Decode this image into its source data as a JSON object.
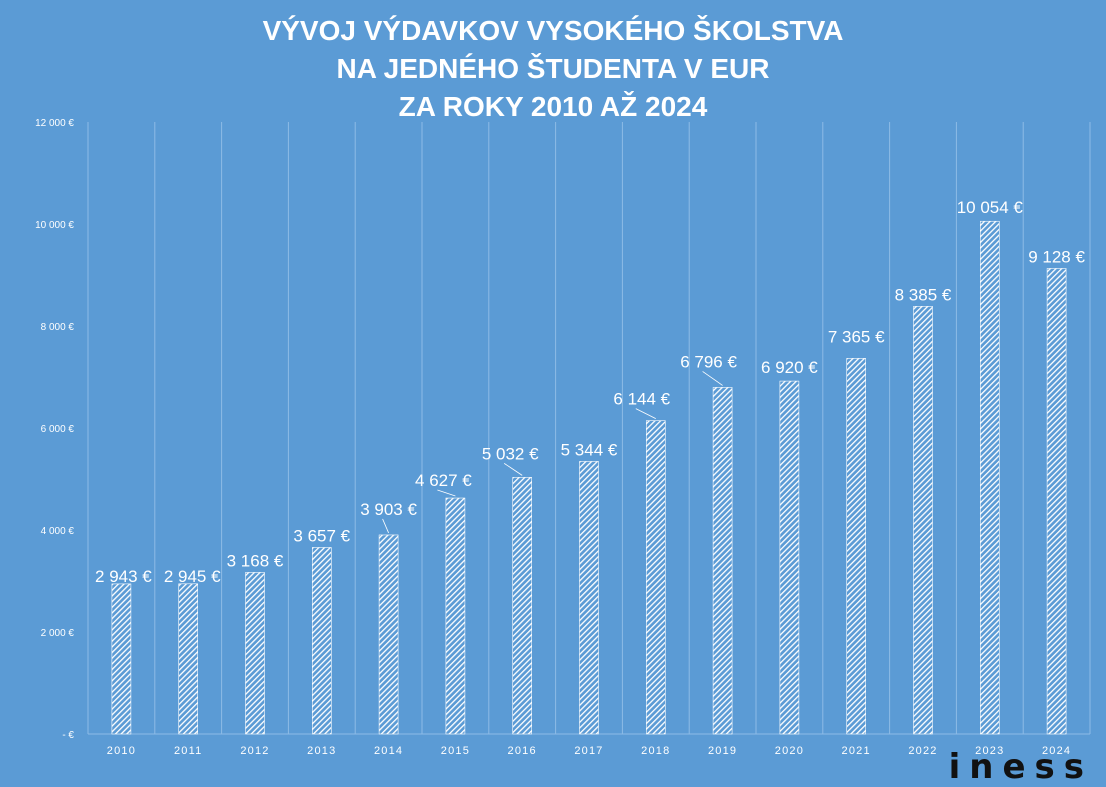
{
  "chart_data": {
    "type": "bar",
    "title": [
      "VÝVOJ VÝDAVKOV VYSOKÉHO ŠKOLSTVA",
      "NA JEDNÉHO ŠTUDENTA V EUR",
      "ZA ROKY 2010 AŽ 2024"
    ],
    "categories": [
      "2010",
      "2011",
      "2012",
      "2013",
      "2014",
      "2015",
      "2016",
      "2017",
      "2018",
      "2019",
      "2020",
      "2021",
      "2022",
      "2023",
      "2024"
    ],
    "values": [
      2943,
      2945,
      3168,
      3657,
      3903,
      4627,
      5032,
      5344,
      6144,
      6796,
      6920,
      7365,
      8385,
      10054,
      9128
    ],
    "data_labels": [
      "2 943 €",
      "2 945 €",
      "3 168 €",
      "3 657 €",
      "3 903 €",
      "4 627 €",
      "5 032 €",
      "5 344 €",
      "6 144 €",
      "6 796 €",
      "6 920 €",
      "7 365 €",
      "8 385 €",
      "10 054 €",
      "9 128 €"
    ],
    "y_ticks": [
      0,
      2000,
      4000,
      6000,
      8000,
      10000,
      12000
    ],
    "y_tick_labels": [
      "-   €",
      "2 000 €",
      "4 000 €",
      "6 000 €",
      "8 000 €",
      "10 000 €",
      "12 000 €"
    ],
    "ylim": [
      0,
      12000
    ],
    "grid": "vertical",
    "bar_fill": "white diagonal hatch",
    "colors": {
      "background": "#5b9bd5",
      "bars": "#ffffff",
      "grid": "#8dbbe6",
      "text": "#ffffff"
    }
  },
  "logo": {
    "text": "iness",
    "color": "#111111"
  }
}
